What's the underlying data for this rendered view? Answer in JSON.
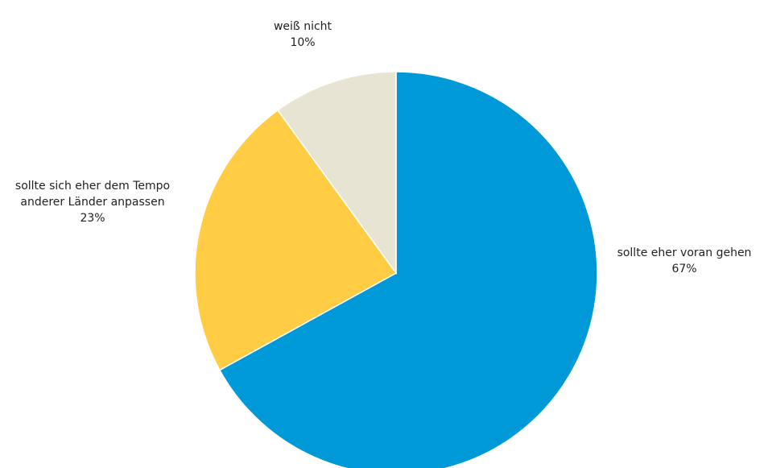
{
  "chart_data": {
    "type": "pie",
    "title": "",
    "slices": [
      {
        "label_lines": [
          "sollte eher voran gehen"
        ],
        "value_label": "67%",
        "value": 67,
        "color": "#0099d8"
      },
      {
        "label_lines": [
          "sollte sich eher dem Tempo",
          "anderer Länder anpassen"
        ],
        "value_label": "23%",
        "value": 23,
        "color": "#ffcc44"
      },
      {
        "label_lines": [
          "weiß nicht"
        ],
        "value_label": "10%",
        "value": 10,
        "color": "#e8e4d3"
      }
    ],
    "legend": "none"
  }
}
